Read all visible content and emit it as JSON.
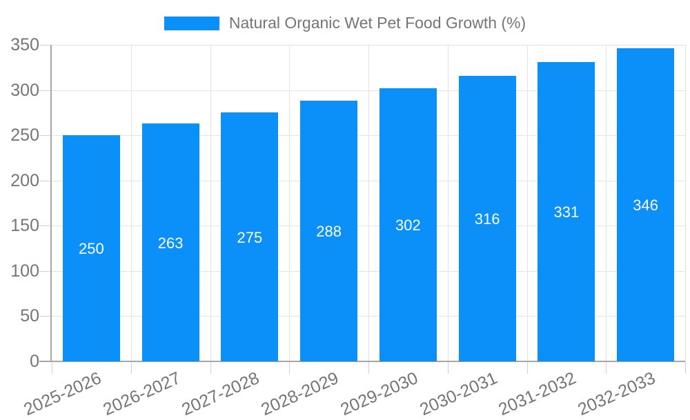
{
  "chart_data": {
    "type": "bar",
    "title": "",
    "legend_position": "top",
    "legend": [
      "Natural Organic Wet Pet Food Growth (%)"
    ],
    "categories": [
      "2025-2026",
      "2026-2027",
      "2027-2028",
      "2028-2029",
      "2029-2030",
      "2030-2031",
      "2031-2032",
      "2032-2033"
    ],
    "series": [
      {
        "name": "Natural Organic Wet Pet Food Growth (%)",
        "values": [
          250,
          263,
          275,
          288,
          302,
          316,
          331,
          346
        ]
      }
    ],
    "xlabel": "",
    "ylabel": "",
    "ylim": [
      0,
      350
    ],
    "yticks": [
      0,
      50,
      100,
      150,
      200,
      250,
      300,
      350
    ],
    "grid": true,
    "bar_value_labels_visible": true,
    "colors": {
      "bar": "#0a90f8",
      "bar_value_label": "#ffffff",
      "axis_text": "#757575",
      "grid_line": "#e3e3e3",
      "tick_line": "#cfcfcf",
      "axis_line": "#a6a6a6",
      "background": "#ffffff"
    }
  }
}
